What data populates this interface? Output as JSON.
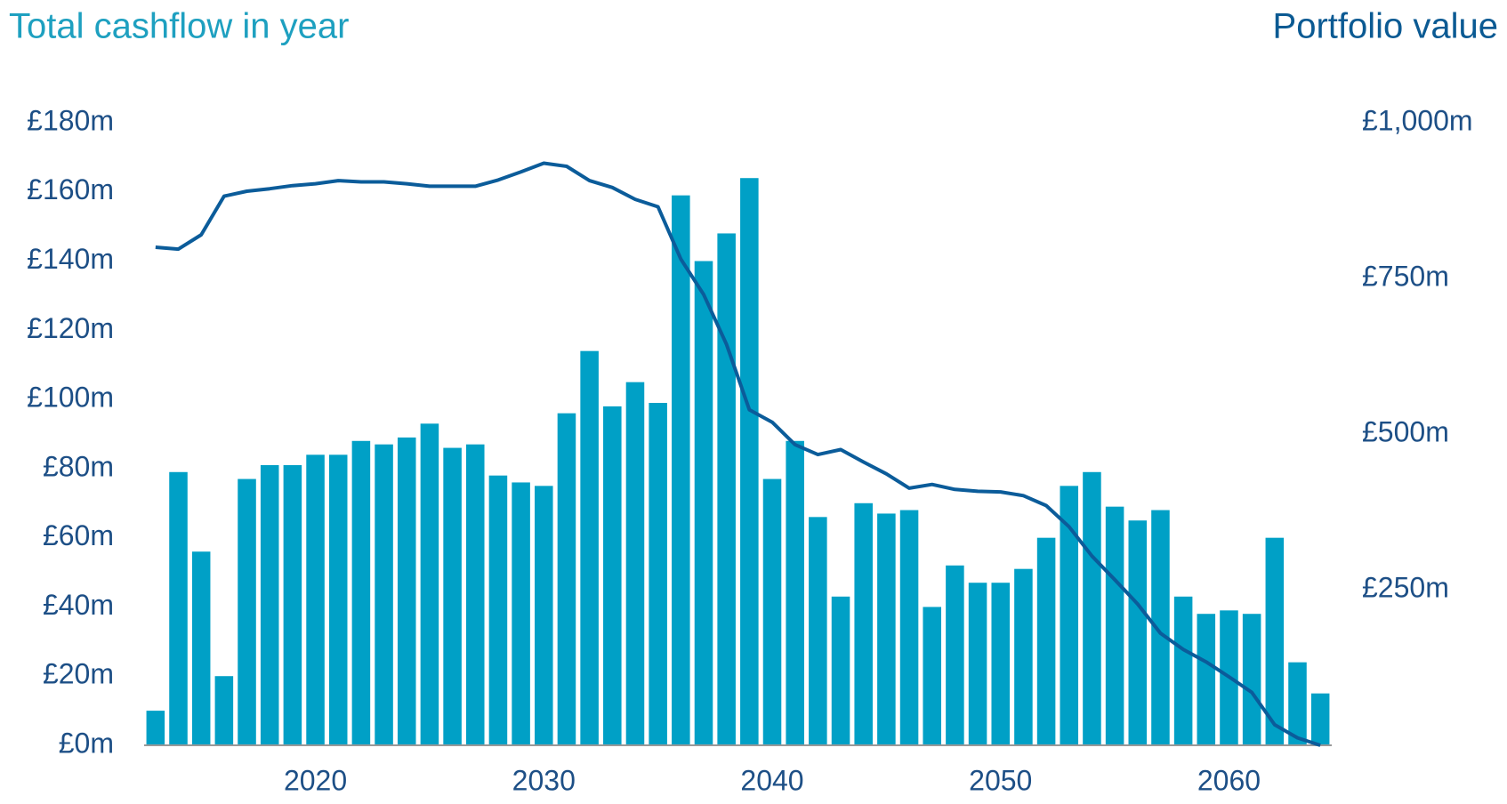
{
  "chart_data": {
    "type": "bar-line",
    "x": [
      2013,
      2014,
      2015,
      2016,
      2017,
      2018,
      2019,
      2020,
      2021,
      2022,
      2023,
      2024,
      2025,
      2026,
      2027,
      2028,
      2029,
      2030,
      2031,
      2032,
      2033,
      2034,
      2035,
      2036,
      2037,
      2038,
      2039,
      2040,
      2041,
      2042,
      2043,
      2044,
      2045,
      2046,
      2047,
      2048,
      2049,
      2050,
      2051,
      2052,
      2053,
      2054,
      2055,
      2056,
      2057,
      2058,
      2059,
      2060,
      2061,
      2062,
      2063,
      2064
    ],
    "series": [
      {
        "name": "Total cashflow in year",
        "type": "bar",
        "color": "#00a0c6",
        "axis": "y",
        "values": [
          10,
          79,
          56,
          20,
          77,
          81,
          81,
          84,
          84,
          88,
          87,
          89,
          93,
          86,
          87,
          78,
          76,
          75,
          96,
          114,
          98,
          105,
          99,
          159,
          140,
          148,
          164,
          77,
          88,
          66,
          43,
          70,
          67,
          68,
          40,
          52,
          47,
          47,
          51,
          60,
          75,
          79,
          69,
          65,
          68,
          43,
          38,
          39,
          38,
          60,
          24,
          15
        ]
      },
      {
        "name": "Portfolio value",
        "type": "line",
        "color": "#0b5c9a",
        "axis": "y2",
        "values": [
          800,
          797,
          820,
          882,
          890,
          894,
          899,
          902,
          907,
          905,
          905,
          902,
          898,
          898,
          898,
          908,
          921,
          935,
          930,
          907,
          896,
          877,
          865,
          781,
          724,
          644,
          539,
          519,
          483,
          467,
          475,
          455,
          436,
          413,
          419,
          411,
          408,
          407,
          401,
          385,
          351,
          304,
          266,
          227,
          180,
          154,
          134,
          110,
          85,
          33,
          12,
          0
        ]
      }
    ],
    "xlim": [
      2012.5,
      2064.5
    ],
    "xticks": [
      2020,
      2030,
      2040,
      2050,
      2060
    ],
    "ylim": [
      0,
      180
    ],
    "yticks": [
      {
        "value": 0,
        "label": "£0m"
      },
      {
        "value": 20,
        "label": "£20m"
      },
      {
        "value": 40,
        "label": "£40m"
      },
      {
        "value": 60,
        "label": "£60m"
      },
      {
        "value": 80,
        "label": "£80m"
      },
      {
        "value": 100,
        "label": "£100m"
      },
      {
        "value": 120,
        "label": "£120m"
      },
      {
        "value": 140,
        "label": "£140m"
      },
      {
        "value": 160,
        "label": "£160m"
      },
      {
        "value": 180,
        "label": "£180m"
      }
    ],
    "y2lim": [
      0,
      1000
    ],
    "y2ticks": [
      {
        "value": 250,
        "label": "£250m"
      },
      {
        "value": 500,
        "label": "£500m"
      },
      {
        "value": 750,
        "label": "£750m"
      },
      {
        "value": 1000,
        "label": "£1,000m"
      }
    ],
    "grid": false
  }
}
